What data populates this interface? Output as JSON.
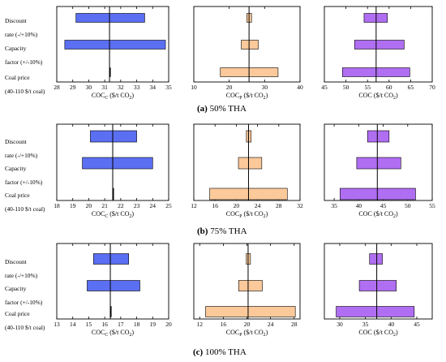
{
  "row_labels": [
    {
      "title": "Discount",
      "range": "rate (-/+10%)"
    },
    {
      "title": "Capacity",
      "range": "factor (+/-10%)"
    },
    {
      "title": "Coal price",
      "range": "(40-110 $/t coal)"
    }
  ],
  "row_labels_b": [
    {
      "title": "Discount",
      "range": "rate (-/+10%)"
    },
    {
      "title": "Capacity",
      "range": "factor (+/-10%)"
    },
    {
      "title": "Coal price",
      "range": "(40-110 $/t coal)"
    }
  ],
  "row_labels_c": [
    {
      "title": "Discount",
      "range": "rate (-/+10%)"
    },
    {
      "title": "Capacity",
      "range": "factor (+/-10%)"
    },
    {
      "title": "Coal price",
      "range": "(40-110 $/t coal)"
    }
  ],
  "captions": [
    {
      "letter": "(a)",
      "text": " 50% THA"
    },
    {
      "letter": "(b)",
      "text": " 75% THA"
    },
    {
      "letter": "(c)",
      "text": " 100% THA"
    }
  ],
  "colors": {
    "COCc": "#5b6ff2",
    "COCp": "#fcc99a",
    "COC": "#b06ef2",
    "edge": "#000000"
  },
  "chart_data": [
    {
      "type": "bar",
      "orientation": "horizontal-tornado",
      "panel": "a",
      "metric": "COCc",
      "xlabel": "COC",
      "xlabel_sub": "C",
      "xlabel_unit": " ($/t CO",
      "xlabel_unit_sub": "2",
      "xlabel_close": ")",
      "xlim": [
        28,
        35
      ],
      "xticks": [
        "28",
        "29",
        "30",
        "31",
        "32",
        "33",
        "34",
        "35"
      ],
      "baseline": 31.3,
      "categories": [
        "Discount rate (-/+10%)",
        "Capacity factor (+/-10%)",
        "Coal price (40-110 $/t coal)"
      ],
      "low": [
        29.2,
        28.5,
        31.3
      ],
      "high": [
        33.5,
        34.8,
        31.3
      ]
    },
    {
      "type": "bar",
      "orientation": "horizontal-tornado",
      "panel": "a",
      "metric": "COCp",
      "xlabel": "COC",
      "xlabel_sub": "P",
      "xlabel_unit": " ($/t CO",
      "xlabel_unit_sub": "2",
      "xlabel_close": ")",
      "xlim": [
        10,
        40
      ],
      "xticks": [
        "10",
        "20",
        "30",
        "40"
      ],
      "baseline": 25.6,
      "categories": [
        "Discount rate (-/+10%)",
        "Capacity factor (+/-10%)",
        "Coal price (40-110 $/t coal)"
      ],
      "low": [
        25.0,
        23.4,
        17.5
      ],
      "high": [
        26.3,
        28.2,
        33.8
      ]
    },
    {
      "type": "bar",
      "orientation": "horizontal-tornado",
      "panel": "a",
      "metric": "COC",
      "xlabel": "COC ($/t CO",
      "xlabel_sub": "",
      "xlabel_unit": "",
      "xlabel_unit_sub": "2",
      "xlabel_close": ")",
      "xlim": [
        45,
        70
      ],
      "xticks": [
        "45",
        "50",
        "55",
        "60",
        "65",
        "70"
      ],
      "baseline": 57.0,
      "categories": [
        "Discount rate (-/+10%)",
        "Capacity factor (+/-10%)",
        "Coal price (40-110 $/t coal)"
      ],
      "low": [
        54.2,
        52.0,
        49.2
      ],
      "high": [
        59.6,
        63.5,
        64.8
      ]
    },
    {
      "type": "bar",
      "orientation": "horizontal-tornado",
      "panel": "b",
      "metric": "COCc",
      "xlabel": "COC",
      "xlabel_sub": "C",
      "xlabel_unit": " ($/t CO",
      "xlabel_unit_sub": "2",
      "xlabel_close": ")",
      "xlim": [
        18,
        25
      ],
      "xticks": [
        "18",
        "19",
        "20",
        "21",
        "22",
        "23",
        "24",
        "25"
      ],
      "baseline": 21.5,
      "categories": [
        "Discount rate (-/+10%)",
        "Capacity factor (+/-10%)",
        "Coal price (40-110 $/t coal)"
      ],
      "low": [
        20.1,
        19.6,
        21.5
      ],
      "high": [
        23.0,
        24.0,
        21.5
      ]
    },
    {
      "type": "bar",
      "orientation": "horizontal-tornado",
      "panel": "b",
      "metric": "COCp",
      "xlabel": "COC",
      "xlabel_sub": "P",
      "xlabel_unit": " ($/t CO",
      "xlabel_unit_sub": "2",
      "xlabel_close": ")",
      "xlim": [
        12,
        32
      ],
      "xticks": [
        "12",
        "16",
        "20",
        "24",
        "28",
        "32"
      ],
      "baseline": 22.3,
      "categories": [
        "Discount rate (-/+10%)",
        "Capacity factor (+/-10%)",
        "Coal price (40-110 $/t coal)"
      ],
      "low": [
        21.9,
        20.4,
        15.0
      ],
      "high": [
        22.8,
        24.8,
        29.6
      ]
    },
    {
      "type": "bar",
      "orientation": "horizontal-tornado",
      "panel": "b",
      "metric": "COC",
      "xlabel": "COC ($/t CO",
      "xlabel_sub": "",
      "xlabel_unit": "",
      "xlabel_unit_sub": "2",
      "xlabel_close": ")",
      "xlim": [
        33,
        55
      ],
      "xticks": [
        "35",
        "40",
        "45",
        "50",
        "55"
      ],
      "baseline": 43.8,
      "categories": [
        "Discount rate (-/+10%)",
        "Capacity factor (+/-10%)",
        "Coal price (40-110 $/t coal)"
      ],
      "low": [
        41.8,
        39.6,
        36.2
      ],
      "high": [
        46.2,
        48.6,
        51.6
      ]
    },
    {
      "type": "bar",
      "orientation": "horizontal-tornado",
      "panel": "c",
      "metric": "COCc",
      "xlabel": "COC",
      "xlabel_sub": "C",
      "xlabel_unit": " ($/t CO",
      "xlabel_unit_sub": "2",
      "xlabel_close": ")",
      "xlim": [
        13,
        20
      ],
      "xticks": [
        "13",
        "14",
        "15",
        "16",
        "17",
        "18",
        "19",
        "20"
      ],
      "baseline": 16.35,
      "categories": [
        "Discount rate (-/+10%)",
        "Capacity factor (+/-10%)",
        "Coal price (40-110 $/t coal)"
      ],
      "low": [
        15.3,
        14.9,
        16.35
      ],
      "high": [
        17.5,
        18.2,
        16.35
      ]
    },
    {
      "type": "bar",
      "orientation": "horizontal-tornado",
      "panel": "c",
      "metric": "COCp",
      "xlabel": "COC",
      "xlabel_sub": "P",
      "xlabel_unit": " ($/t CO",
      "xlabel_unit_sub": "2",
      "xlabel_close": ")",
      "xlim": [
        11,
        29
      ],
      "xticks": [
        "12",
        "16",
        "20",
        "24",
        "28"
      ],
      "baseline": 20.2,
      "categories": [
        "Discount rate (-/+10%)",
        "Capacity factor (+/-10%)",
        "Coal price (40-110 $/t coal)"
      ],
      "low": [
        19.9,
        18.6,
        13.0
      ],
      "high": [
        20.6,
        22.6,
        28.2
      ]
    },
    {
      "type": "bar",
      "orientation": "horizontal-tornado",
      "panel": "c",
      "metric": "COC",
      "xlabel": "COC ($/t CO",
      "xlabel_sub": "",
      "xlabel_unit": "",
      "xlabel_unit_sub": "2",
      "xlabel_close": ")",
      "xlim": [
        27,
        48
      ],
      "xticks": [
        "30",
        "35",
        "40",
        "45"
      ],
      "baseline": 37.2,
      "categories": [
        "Discount rate (-/+10%)",
        "Capacity factor (+/-10%)",
        "Coal price (40-110 $/t coal)"
      ],
      "low": [
        35.8,
        33.8,
        29.3
      ],
      "high": [
        38.3,
        41.0,
        44.5
      ]
    }
  ]
}
